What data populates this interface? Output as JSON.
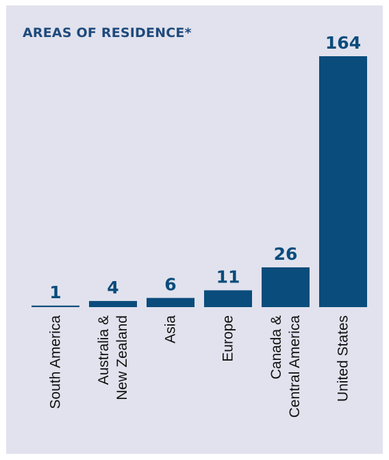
{
  "chart_data": {
    "type": "bar",
    "title": "AREAS OF RESIDENCE*",
    "categories": [
      "South America",
      "Australia & New Zealand",
      "Asia",
      "Europe",
      "Canada & Central America",
      "United States"
    ],
    "category_label_lines": [
      [
        "South America"
      ],
      [
        "Australia &",
        "New Zealand"
      ],
      [
        "Asia"
      ],
      [
        "Europe"
      ],
      [
        "Canada &",
        "Central America"
      ],
      [
        "United States"
      ]
    ],
    "values": [
      1,
      4,
      6,
      11,
      26,
      164
    ],
    "data_labels": [
      "1",
      "4",
      "6",
      "11",
      "26",
      "164"
    ],
    "ylim": [
      0,
      164
    ],
    "grid": false,
    "legend": "none",
    "colors": {
      "bar": "#0a4c7c",
      "value_label": "#0a4c7c",
      "title": "#1f4a7c",
      "panel_background": "#e1e2ed",
      "axis_label": "#111111"
    }
  }
}
